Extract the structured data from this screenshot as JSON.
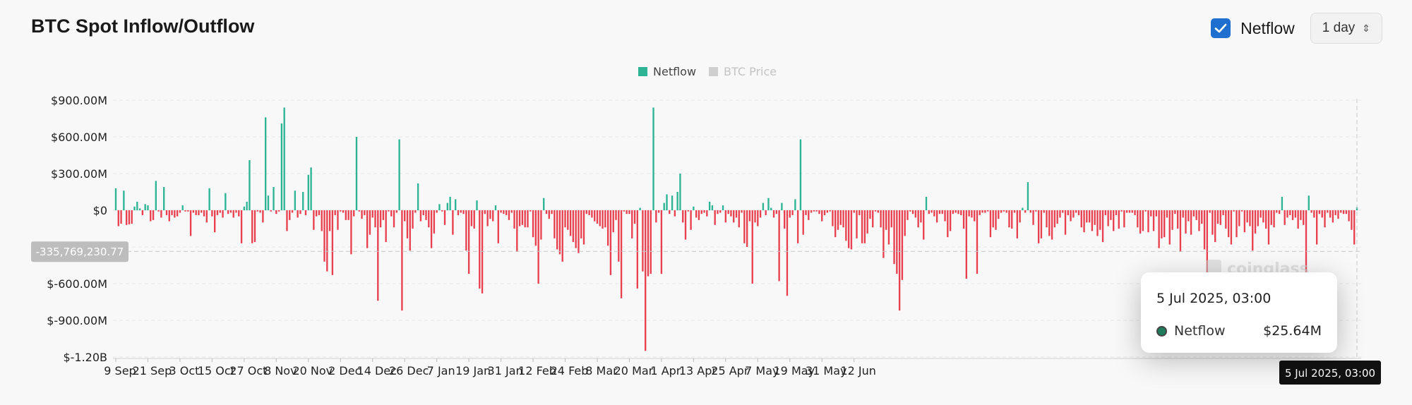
{
  "header": {
    "title": "BTC Spot Inflow/Outflow",
    "netflow_toggle_label": "Netflow",
    "netflow_checked": true,
    "interval_select": "1 day"
  },
  "colors": {
    "positive": "#2cb494",
    "negative": "#e8404f",
    "legend_inactive": "#cfcfcf"
  },
  "crosshair": {
    "y_label": "-335,769,230.77",
    "x_label": "5 Jul 2025, 03:00"
  },
  "tooltip": {
    "date": "5 Jul 2025, 03:00",
    "series": "Netflow",
    "value": "$25.64M"
  },
  "watermark": "coinglass",
  "chart_data": {
    "type": "bar",
    "title": "BTC Spot Inflow/Outflow",
    "legend": [
      {
        "name": "Netflow",
        "active": true
      },
      {
        "name": "BTC Price",
        "active": false
      }
    ],
    "legend_position": "top-center",
    "grid": true,
    "y_unit": "USD (millions)",
    "ylim": [
      -1200,
      900
    ],
    "y_ticks": [
      900,
      600,
      300,
      0,
      -300,
      -600,
      -900,
      -1200
    ],
    "y_tick_labels": [
      "$900.00M",
      "$600.00M",
      "$300.00M",
      "$0",
      "",
      "$-600.00M",
      "$-900.00M",
      "$-1.20B"
    ],
    "x_tick_labels": [
      "9 Sep",
      "21 Sep",
      "3 Oct",
      "15 Oct",
      "27 Oct",
      "8 Nov",
      "20 Nov",
      "2 Dec",
      "14 Dec",
      "26 Dec",
      "7 Jan",
      "19 Jan",
      "31 Jan",
      "12 Feb",
      "24 Feb",
      "8 Mar",
      "20 Mar",
      "1 Apr",
      "13 Apr",
      "25 Apr",
      "7 May",
      "19 May",
      "31 May",
      "12 Jun"
    ],
    "x_start": "9 Sep 2024",
    "x_end": "5 Jul 2025",
    "series": [
      {
        "name": "Netflow",
        "values": [
          180,
          -130,
          -110,
          160,
          -120,
          -115,
          -110,
          30,
          70,
          15,
          -40,
          50,
          40,
          -90,
          -80,
          240,
          -10,
          -60,
          190,
          -40,
          -90,
          -40,
          -60,
          -50,
          -20,
          40,
          -10,
          -10,
          -210,
          -20,
          -40,
          -40,
          -20,
          -50,
          -100,
          180,
          -50,
          -180,
          -40,
          -20,
          -60,
          140,
          -30,
          -20,
          -60,
          -20,
          -50,
          -270,
          30,
          70,
          410,
          -270,
          -260,
          -10,
          -20,
          -100,
          760,
          120,
          -10,
          190,
          -30,
          -10,
          710,
          840,
          -170,
          -80,
          -20,
          160,
          -60,
          -30,
          150,
          -40,
          290,
          350,
          -160,
          -50,
          -40,
          -170,
          -420,
          -500,
          -170,
          -530,
          -40,
          -160,
          -10,
          -20,
          -80,
          -80,
          -360,
          -50,
          600,
          -10,
          -70,
          -40,
          -310,
          -200,
          -60,
          -140,
          -740,
          -140,
          -80,
          -260,
          -10,
          -50,
          -140,
          -20,
          580,
          -820,
          -90,
          -230,
          -330,
          -150,
          -20,
          220,
          -90,
          -40,
          -80,
          -140,
          -310,
          -190,
          -20,
          50,
          -10,
          -120,
          60,
          110,
          -200,
          90,
          -40,
          -20,
          -30,
          -330,
          -520,
          -130,
          -150,
          80,
          -640,
          -680,
          -30,
          -130,
          -70,
          -90,
          40,
          -270,
          -20,
          -30,
          -40,
          -80,
          -20,
          -150,
          -340,
          -130,
          -120,
          -140,
          -140,
          -10,
          -220,
          -290,
          -600,
          -240,
          100,
          -30,
          -70,
          -30,
          -230,
          -320,
          -360,
          -420,
          -140,
          -160,
          -210,
          -260,
          -310,
          -350,
          -230,
          -280,
          -30,
          -40,
          -60,
          -90,
          -110,
          -130,
          -150,
          -140,
          -290,
          -530,
          -180,
          -80,
          -420,
          -720,
          -10,
          -30,
          -30,
          -230,
          -110,
          -640,
          20,
          -500,
          -1150,
          -540,
          -520,
          840,
          -100,
          -20,
          -520,
          60,
          130,
          -30,
          120,
          -50,
          150,
          300,
          -100,
          -240,
          -10,
          -160,
          30,
          -60,
          -80,
          -30,
          -20,
          -50,
          70,
          40,
          -120,
          -30,
          -20,
          40,
          -100,
          -30,
          -50,
          -100,
          -60,
          -140,
          -20,
          -270,
          -300,
          -90,
          -600,
          -100,
          -130,
          -60,
          60,
          -40,
          100,
          20,
          -60,
          -30,
          -580,
          60,
          -150,
          -700,
          -60,
          -40,
          90,
          -270,
          580,
          -200,
          -40,
          -80,
          -20,
          -10,
          -10,
          -30,
          -90,
          -40,
          -20,
          -10,
          -130,
          -220,
          -160,
          -120,
          -140,
          -250,
          -310,
          -320,
          -20,
          -230,
          -40,
          -270,
          -270,
          -190,
          -70,
          -140,
          -10,
          -20,
          -140,
          -390,
          -160,
          -280,
          -140,
          -440,
          -520,
          -820,
          -570,
          -210,
          -80,
          -10,
          -30,
          -60,
          -140,
          -100,
          -240,
          110,
          -30,
          -20,
          -50,
          -100,
          -30,
          -30,
          -90,
          -220,
          -170,
          -30,
          -20,
          -30,
          -40,
          -150,
          -560,
          -50,
          -60,
          -90,
          -520,
          -40,
          -20,
          -20,
          -10,
          -220,
          -140,
          -160,
          -70,
          -20,
          -10,
          -20,
          -140,
          -150,
          -20,
          -230,
          -100,
          20,
          -20,
          230,
          -20,
          -120,
          -10,
          -270,
          -230,
          -20,
          -140,
          -210,
          -240,
          -140,
          -110,
          -60,
          -20,
          -200,
          -40,
          -90,
          -60,
          -20,
          -40,
          -140,
          -180,
          -100,
          -100,
          -170,
          -120,
          -210,
          -160,
          -260,
          -40,
          -130,
          -80,
          -170,
          -40,
          -150,
          -10,
          -140,
          -20,
          -20,
          -20,
          -40,
          -140,
          -190,
          -170,
          -10,
          -180,
          -50,
          -170,
          -50,
          -310,
          -230,
          -220,
          -60,
          -280,
          -160,
          -30,
          -150,
          -340,
          -60,
          -190,
          -90,
          -200,
          -50,
          -80,
          -170,
          -110,
          -320,
          -520,
          -20,
          -200,
          -260,
          -110,
          -120,
          -40,
          -150,
          -220,
          -280,
          -10,
          -220,
          -130,
          -10,
          -180,
          -100,
          -130,
          -330,
          -190,
          -130,
          -60,
          -100,
          -150,
          -280,
          -120,
          -140,
          -20,
          -30,
          110,
          -120,
          -60,
          -40,
          -80,
          -60,
          -150,
          -80,
          -120,
          -550,
          120,
          -20,
          -60,
          -280,
          -30,
          -60,
          -140,
          -20,
          -60,
          -100,
          -40,
          -70,
          -20,
          -30,
          -30,
          -90,
          -160,
          -280,
          25.64
        ]
      }
    ]
  }
}
